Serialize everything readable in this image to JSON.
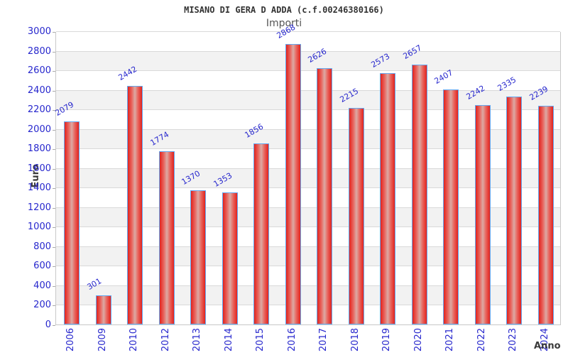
{
  "header": {
    "title": "MISANO DI GERA D ADDA (c.f.00246380166)",
    "subtitle": "Importi"
  },
  "chart_data": {
    "type": "bar",
    "title": "MISANO DI GERA D ADDA (c.f.00246380166)",
    "subtitle": "Importi",
    "xlabel": "Anno",
    "ylabel": "Euro",
    "categories": [
      "2006",
      "2009",
      "2010",
      "2012",
      "2013",
      "2014",
      "2015",
      "2016",
      "2017",
      "2018",
      "2019",
      "2020",
      "2021",
      "2022",
      "2023",
      "2024"
    ],
    "values": [
      2079,
      301,
      2442,
      1774,
      1370,
      1353,
      1856,
      2868,
      2626,
      2215,
      2573,
      2657,
      2407,
      2242,
      2335,
      2239
    ],
    "ylim": [
      0,
      3000
    ],
    "yticks": [
      0,
      200,
      400,
      600,
      800,
      1000,
      1200,
      1400,
      1600,
      1800,
      2000,
      2200,
      2400,
      2600,
      2800,
      3000
    ],
    "grid": true,
    "legend": false,
    "bands_alternating": true,
    "colors": {
      "bar_edge": "#e2231d",
      "bar_mid": "#e8655e",
      "bar_center": "#dcaaa4",
      "bar_border": "#64a8f0",
      "label_blue": "#2727cd",
      "band_gray": "#f2f2f2",
      "band_white": "#ffffff",
      "gridline": "#d9d9d9",
      "plot_border": "#c8c8c8",
      "tick_mark": "#aaaaaa"
    }
  }
}
